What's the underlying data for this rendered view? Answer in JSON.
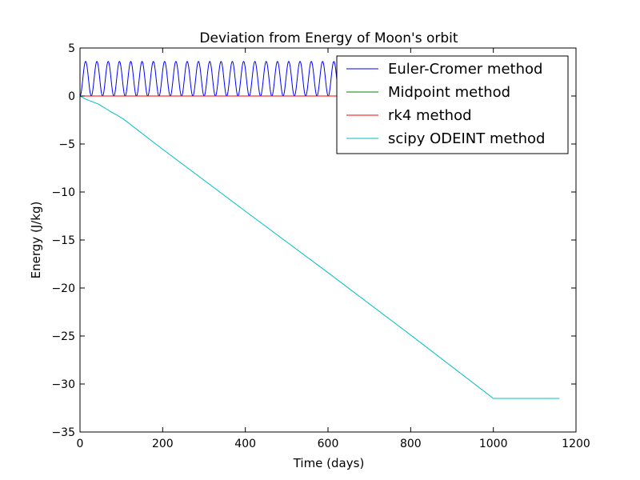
{
  "chart_data": {
    "type": "line",
    "title": "Deviation from Energy of Moon's orbit",
    "xlabel": "Time (days)",
    "ylabel": "Energy (J/kg)",
    "xlim": [
      0,
      1200
    ],
    "ylim": [
      -35,
      5
    ],
    "xticks": [
      0,
      200,
      400,
      600,
      800,
      1000,
      1200
    ],
    "xtick_labels": [
      "0",
      "200",
      "400",
      "600",
      "800",
      "1000",
      "1200"
    ],
    "yticks": [
      5,
      0,
      -5,
      -10,
      -15,
      -20,
      -25,
      -30,
      -35
    ],
    "ytick_labels": [
      "5",
      "0",
      "−5",
      "−10",
      "−15",
      "−20",
      "−25",
      "−30",
      "−35"
    ],
    "grid": false,
    "legend_position": "top-right",
    "series": [
      {
        "name": "Euler-Cromer method",
        "color": "#0000ff",
        "kind": "oscillation",
        "period_days": 27.3,
        "amplitude": 3.6,
        "baseline": 0,
        "x_range": [
          0,
          1160
        ]
      },
      {
        "name": "Midpoint method",
        "color": "#008000",
        "x": [
          0,
          1160
        ],
        "y": [
          0,
          0
        ]
      },
      {
        "name": "rk4 method",
        "color": "#ff0000",
        "x": [
          0,
          1160
        ],
        "y": [
          0,
          0
        ]
      },
      {
        "name": "scipy ODEINT method",
        "color": "#00bfbf",
        "x": [
          0,
          15,
          30,
          45,
          60,
          75,
          90,
          105,
          200,
          400,
          600,
          800,
          1000,
          1160
        ],
        "y": [
          0,
          -0.35,
          -0.6,
          -0.85,
          -1.25,
          -1.65,
          -2.0,
          -2.4,
          -5.55,
          -12.0,
          -18.4,
          -24.9,
          -31.5,
          -31.5
        ]
      }
    ]
  }
}
